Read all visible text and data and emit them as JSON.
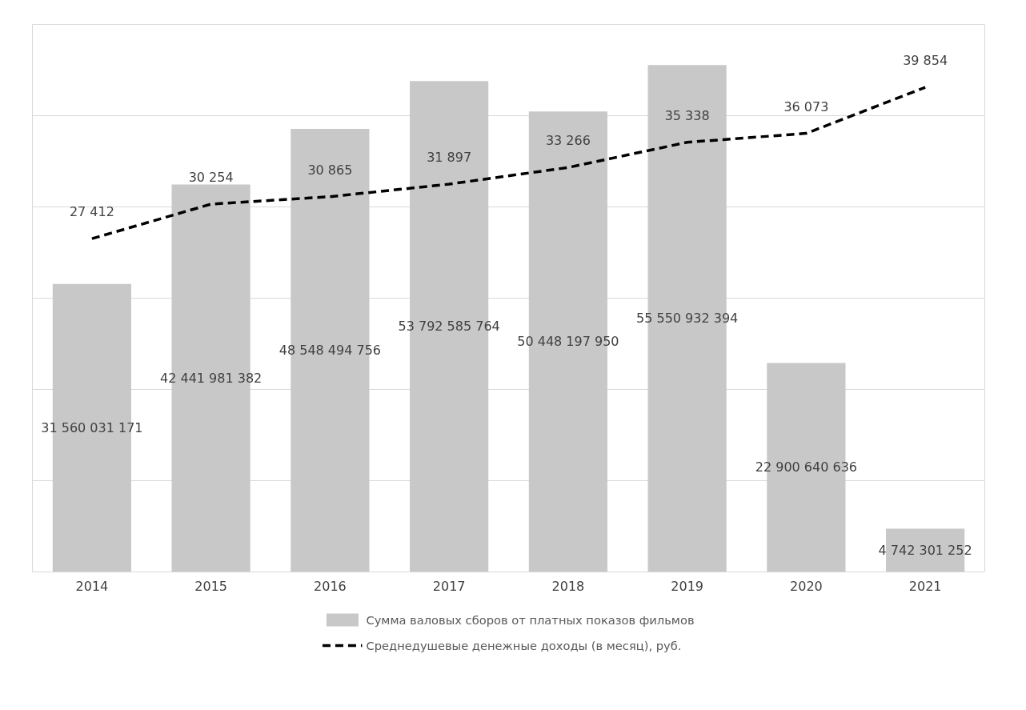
{
  "chart_data": {
    "type": "bar",
    "categories": [
      "2014",
      "2015",
      "2016",
      "2017",
      "2018",
      "2019",
      "2020",
      "2021"
    ],
    "series": [
      {
        "name": "Сумма валовых сборов от платных показов фильмов",
        "color": "#c8c8c8",
        "values": [
          31560031171,
          42441981382,
          48548494756,
          53792585764,
          50448197950,
          55550932394,
          22900640636,
          4742301252
        ]
      },
      {
        "name": "Среднедушевые денежные доходы (в месяц), руб.",
        "color": "#000000",
        "type": "line",
        "line_style": "dashed",
        "axis": "y2",
        "values": [
          27412,
          30254,
          30865,
          31897,
          33266,
          35338,
          36073,
          39854
        ]
      }
    ],
    "grid": "y",
    "tick_labels": "x",
    "data_labels": true,
    "legend": "bottom"
  }
}
